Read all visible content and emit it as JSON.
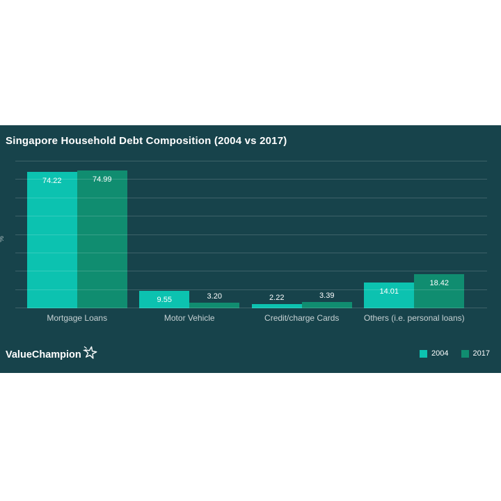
{
  "chart": {
    "title": "Singapore Household Debt Composition (2004 vs 2017)",
    "y_axis_label": "%"
  },
  "chart_data": {
    "type": "bar",
    "title": "Singapore Household Debt Composition (2004 vs 2017)",
    "categories": [
      "Mortgage Loans",
      "Motor Vehicle",
      "Credit/charge Cards",
      "Others (i.e. personal loans)"
    ],
    "series": [
      {
        "name": "2004",
        "color": "#0cc2b0",
        "values": [
          74.22,
          9.55,
          2.22,
          14.01
        ]
      },
      {
        "name": "2017",
        "color": "#108d70",
        "values": [
          74.99,
          3.2,
          3.39,
          18.42
        ]
      }
    ],
    "value_decimals": 2,
    "xlabel": "",
    "ylabel": "%",
    "ylim": [
      0,
      80
    ],
    "gridline_step": 10,
    "grid": true,
    "legend_position": "bottom-right",
    "background_color": "#17434b"
  },
  "branding": {
    "logo_text": "ValueChampion"
  }
}
